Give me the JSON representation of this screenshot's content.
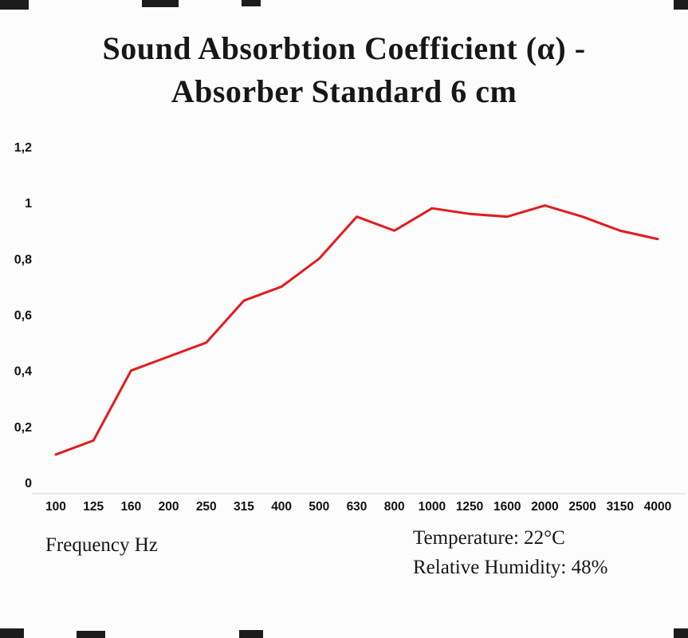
{
  "title": {
    "line1": "Sound Absorbtion Coefficient (α) -",
    "line2": "Absorber Standard 6 cm"
  },
  "footer": {
    "frequency_label": "Frequency Hz",
    "temperature": "Temperature: 22°C",
    "humidity": "Relative Humidity: 48%"
  },
  "colors": {
    "line": "#e31b1c",
    "axis": "#d6d6d6",
    "background": "#fcfcfc",
    "text": "#111111"
  },
  "chart_data": {
    "type": "line",
    "title": "Sound Absorbtion Coefficient (α) - Absorber Standard 6 cm",
    "xlabel": "Frequency Hz",
    "ylabel": "",
    "categories": [
      "100",
      "125",
      "160",
      "200",
      "250",
      "315",
      "400",
      "500",
      "630",
      "800",
      "1000",
      "1250",
      "1600",
      "2000",
      "2500",
      "3150",
      "4000"
    ],
    "values": [
      0.1,
      0.15,
      0.4,
      0.45,
      0.5,
      0.65,
      0.7,
      0.8,
      0.95,
      0.9,
      0.98,
      0.96,
      0.95,
      0.99,
      0.95,
      0.9,
      0.87
    ],
    "ylim": [
      0,
      1.2
    ],
    "yticks": [
      0,
      0.2,
      0.4,
      0.6,
      0.8,
      1,
      1.2
    ],
    "ytick_labels": [
      "0",
      "0,2",
      "0,4",
      "0,6",
      "0,8",
      "1",
      "1,2"
    ],
    "grid": false,
    "legend": "none",
    "line_color": "#e31b1c",
    "annotations": [
      "Temperature: 22°C",
      "Relative Humidity: 48%"
    ]
  }
}
